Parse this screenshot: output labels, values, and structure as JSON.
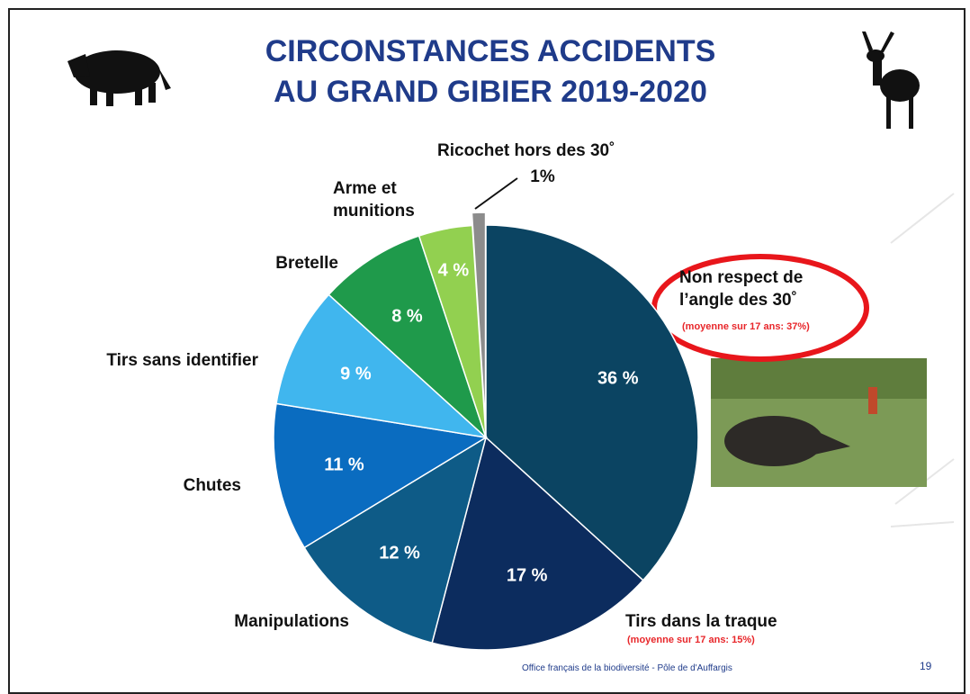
{
  "chart_data": {
    "type": "pie",
    "title": [
      "CIRCONSTANCES ACCIDENTS",
      "AU GRAND GIBIER 2019-2020"
    ],
    "categories": [
      "Non respect de l’angle des 30˚",
      "Tirs dans la traque",
      "Manipulations",
      "Chutes",
      "Tirs sans identifier",
      "Bretelle",
      "Arme et munitions",
      "Ricochet hors des 30˚"
    ],
    "values": [
      36,
      17,
      12,
      11,
      9,
      8,
      4,
      1
    ],
    "value_labels": [
      "36 %",
      "17 %",
      "12 %",
      "11 %",
      "9 %",
      "8 %",
      "4 %",
      "1%"
    ],
    "colors": [
      "#0b4462",
      "#0c2c5e",
      "#0e5b87",
      "#0a6cc0",
      "#40b6ee",
      "#1f9a4b",
      "#92d050",
      "#8c8c8c"
    ],
    "annotations": [
      "(moyenne sur 17 ans: 37%)",
      "(moyenne sur 17 ans: 15%)"
    ],
    "footer": "Office français de la biodiversité  -  Pôle de d'Auffargis",
    "page_number": "19"
  }
}
